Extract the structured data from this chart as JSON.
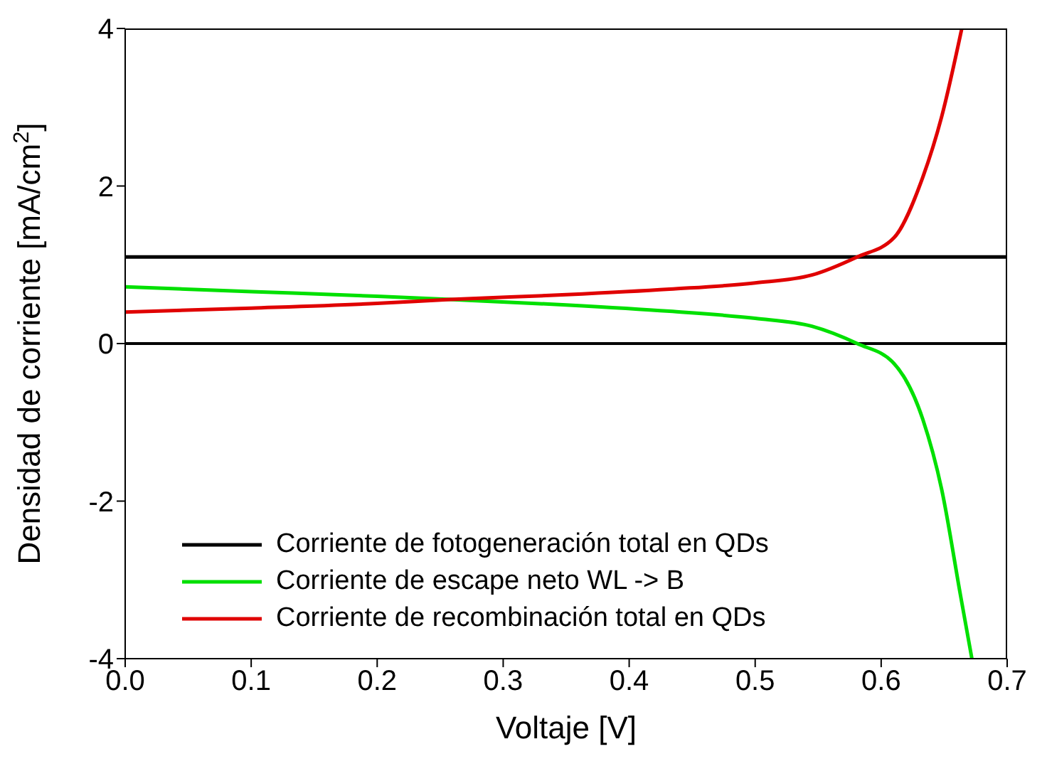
{
  "chart_data": {
    "type": "line",
    "xlabel": "Voltaje [V]",
    "ylabel": "Densidad de corriente [mA/cm$^{2}$]",
    "xlim": [
      0,
      0.7
    ],
    "xticks": [
      {
        "value": 0,
        "label": "0.0"
      },
      0.1,
      0.2,
      0.3,
      0.4,
      0.5,
      0.6,
      0.7
    ],
    "ylim": [
      -4,
      4
    ],
    "yticks": [
      -4,
      -2,
      0,
      2,
      4
    ],
    "grid": false,
    "legend": "bottom left",
    "marker": "none",
    "line_style": "solid",
    "ref_lines": [
      {
        "axis": "y",
        "value": 0,
        "color": "#000000"
      }
    ],
    "series": [
      {
        "name": "Corriente de fotogeneración total en QDs",
        "color": "#000000",
        "x": [
          0,
          0.7
        ],
        "values": [
          1.1,
          1.1
        ]
      },
      {
        "name": "Corriente de escape neto WL -> B",
        "color": "#00e000",
        "x": [
          0,
          0.1,
          0.2,
          0.258,
          0.35,
          0.432,
          0.5,
          0.545,
          0.581,
          0.61,
          0.633,
          0.648,
          0.663,
          0.672
        ],
        "values": [
          0.72,
          0.66,
          0.6,
          0.56,
          0.49,
          0.41,
          0.32,
          0.22,
          0,
          -0.25,
          -0.96,
          -1.85,
          -3.2,
          -4
        ]
      },
      {
        "name": "Corriente de recombinación total en QDs",
        "color": "#e00000",
        "x": [
          0,
          0.1,
          0.2,
          0.258,
          0.35,
          0.432,
          0.5,
          0.545,
          0.581,
          0.61,
          0.633,
          0.648,
          0.664
        ],
        "values": [
          0.4,
          0.45,
          0.51,
          0.56,
          0.62,
          0.69,
          0.77,
          0.87,
          1.1,
          1.34,
          2.11,
          2.88,
          4
        ]
      }
    ]
  }
}
